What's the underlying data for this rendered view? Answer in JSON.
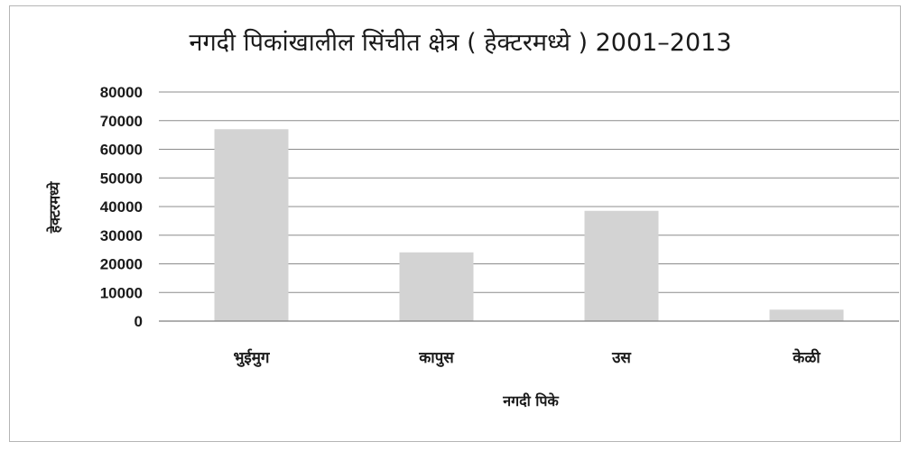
{
  "chart_data": {
    "type": "bar",
    "title": "नगदी पिकांखालील सिंचीत क्षेत्र ( हेक्टरमध्ये ) 2001–2013",
    "xlabel": "नगदी पिके",
    "ylabel": "हेक्टरमध्ये",
    "categories": [
      "भुईमुग",
      "कापुस",
      "उस",
      "केळी"
    ],
    "values": [
      67000,
      24000,
      38500,
      4000
    ],
    "ylim": [
      0,
      80000
    ],
    "yticks": [
      "0",
      "10000",
      "20000",
      "30000",
      "40000",
      "50000",
      "60000",
      "70000",
      "80000"
    ],
    "grid": true,
    "legend": "none",
    "bar_color": "#d3d3d3",
    "grid_color": "#8c8c8c"
  }
}
